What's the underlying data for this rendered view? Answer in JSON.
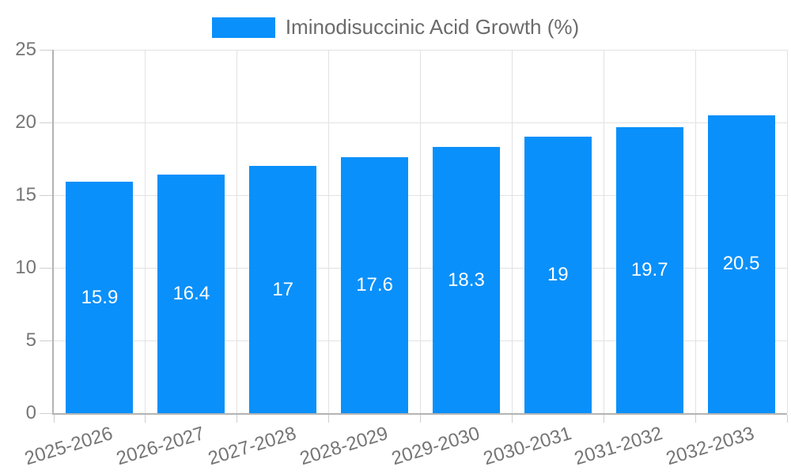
{
  "legend": {
    "label": "Iminodisuccinic Acid Growth (%)"
  },
  "chart_data": {
    "type": "bar",
    "title": "",
    "xlabel": "",
    "ylabel": "",
    "categories": [
      "2025-2026",
      "2026-2027",
      "2027-2028",
      "2028-2029",
      "2029-2030",
      "2030-2031",
      "2031-2032",
      "2032-2033"
    ],
    "series": [
      {
        "name": "Iminodisuccinic Acid Growth (%)",
        "values": [
          15.9,
          16.4,
          17,
          17.6,
          18.3,
          19,
          19.7,
          20.5
        ]
      }
    ],
    "bar_labels": [
      "15.9",
      "16.4",
      "17",
      "17.6",
      "18.3",
      "19",
      "19.7",
      "20.5"
    ],
    "ylim": [
      0,
      25
    ],
    "yticks": [
      0,
      5,
      10,
      15,
      20,
      25
    ],
    "grid": true,
    "legend_position": "top-center",
    "x_tick_rotation_deg": -17
  },
  "colors": {
    "bar": "#0a90fa",
    "grid": "#e2e2e2",
    "axis": "#b3b3b3",
    "tick_mark": "#cfcfcf",
    "tick_text": "#757575",
    "legend_text": "#6b6b6b",
    "bar_label_text": "#ffffff",
    "background": "#ffffff"
  }
}
